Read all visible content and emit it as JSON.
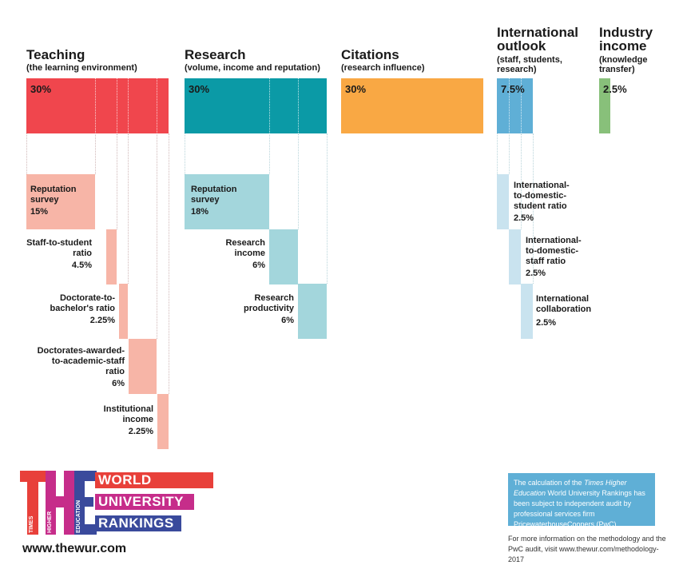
{
  "pillars": [
    {
      "title": "Teaching",
      "subtitle": "(the learning environment)",
      "value": "30%"
    },
    {
      "title": "Research",
      "subtitle": "(volume, income and reputation)",
      "value": "30%"
    },
    {
      "title": "Citations",
      "subtitle": "(research influence)",
      "value": "30%"
    },
    {
      "title_lines": [
        "International",
        "outlook"
      ],
      "subtitle_lines": [
        "(staff, students,",
        "research)"
      ],
      "value": "7.5%"
    },
    {
      "title_lines": [
        "Industry",
        "income"
      ],
      "subtitle_lines": [
        "(knowledge",
        "transfer)"
      ],
      "value": "2.5%"
    }
  ],
  "teaching_sub": [
    {
      "lines": [
        "Reputation",
        "survey"
      ],
      "value": "15%"
    },
    {
      "lines": [
        "Staff-to-student",
        "ratio"
      ],
      "value": "4.5%"
    },
    {
      "lines": [
        "Doctorate-to-",
        "bachelor's ratio"
      ],
      "value": "2.25%"
    },
    {
      "lines": [
        "Doctorates-awarded-",
        "to-academic-staff",
        "ratio"
      ],
      "value": "6%"
    },
    {
      "lines": [
        "Institutional",
        "income"
      ],
      "value": "2.25%"
    }
  ],
  "research_sub": [
    {
      "lines": [
        "Reputation",
        "survey"
      ],
      "value": "18%"
    },
    {
      "lines": [
        "Research",
        "income"
      ],
      "value": "6%"
    },
    {
      "lines": [
        "Research",
        "productivity"
      ],
      "value": "6%"
    }
  ],
  "international_sub": [
    {
      "lines": [
        "International-",
        "to-domestic-",
        "student ratio"
      ],
      "value": "2.5%"
    },
    {
      "lines": [
        "International-",
        "to-domestic-",
        "staff ratio"
      ],
      "value": "2.5%"
    },
    {
      "lines": [
        "International",
        "collaboration"
      ],
      "value": "2.5%"
    }
  ],
  "chart_data": {
    "type": "bar",
    "categories": [
      "Teaching",
      "Research",
      "Citations",
      "International outlook",
      "Industry income"
    ],
    "values": [
      30,
      30,
      30,
      7.5,
      2.5
    ],
    "unit": "%",
    "breakdown": {
      "Teaching": {
        "Reputation survey": 15,
        "Staff-to-student ratio": 4.5,
        "Doctorate-to-bachelor's ratio": 2.25,
        "Doctorates-awarded-to-academic-staff ratio": 6,
        "Institutional income": 2.25
      },
      "Research": {
        "Reputation survey": 18,
        "Research income": 6,
        "Research productivity": 6
      },
      "International outlook": {
        "International-to-domestic-student ratio": 2.5,
        "International-to-domestic-staff ratio": 2.5,
        "International collaboration": 2.5
      }
    }
  },
  "colors": {
    "teaching": "#f0464d",
    "teaching_light": "#f7b5a7",
    "research": "#0b9aa6",
    "research_light": "#a3d6dc",
    "citations": "#f9a844",
    "international": "#5fafd6",
    "international_light": "#c9e3ef",
    "industry": "#88c07a"
  },
  "logo": {
    "letters": "THE",
    "vertical_words": [
      "TIMES",
      "HIGHER",
      "EDUCATION"
    ],
    "lines": [
      "WORLD",
      "UNIVERSITY",
      "RANKINGS"
    ]
  },
  "website": "www.thewur.com",
  "audit_note": {
    "pre": "The calculation of the ",
    "italic": "Times Higher Education",
    "post": " World University Rankings has been subject to independent audit by professional services firm PricewaterhouseCoopers (PwC)"
  },
  "more_info": "For more information on the methodology and the PwC audit, visit www.thewur.com/methodology-2017"
}
